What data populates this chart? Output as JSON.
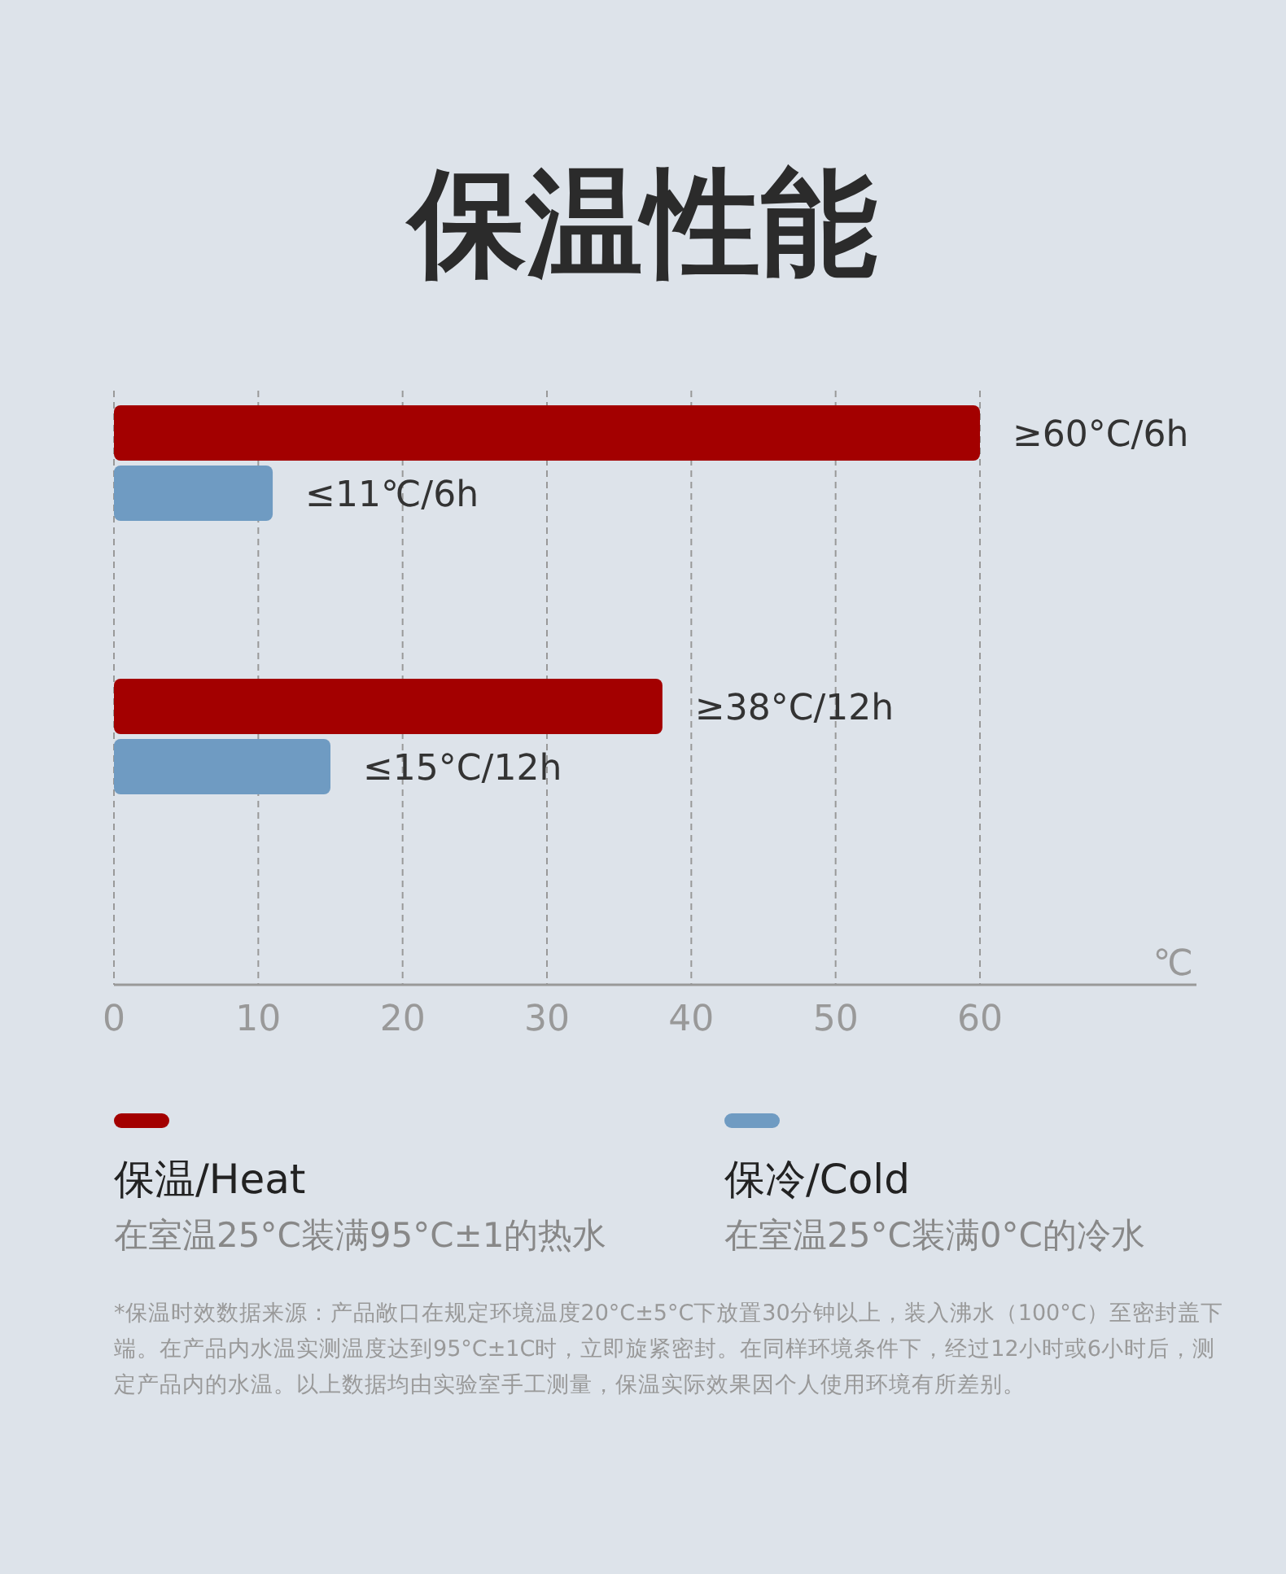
{
  "chart_data": {
    "type": "bar",
    "orientation": "horizontal",
    "title": "保温性能",
    "xlabel": "℃",
    "categories": [
      null,
      null
    ],
    "series": [
      {
        "name": "保温/Heat",
        "color": "#a30000",
        "values": [
          60,
          38
        ],
        "value_labels": [
          "≥60°C/6h",
          "≥38°C/12h"
        ]
      },
      {
        "name": "保冷/Cold",
        "color": "#6f9bc2",
        "values": [
          11,
          15
        ],
        "value_labels": [
          "≤11℃/6h",
          "≤15°C/12h"
        ]
      }
    ],
    "xlim": [
      0,
      75
    ],
    "xticks": [
      0,
      10,
      20,
      30,
      40,
      50,
      60
    ],
    "grid": "x",
    "legend": "bottom",
    "annotations": [
      "在室温25°C装满95°C±1的热水",
      "在室温25°C装满0°C的冷水",
      "*保温时效数据来源：产品敞口在规定环境温度20°C±5°C下放置30分钟以上，装入沸水（100°C）至密封盖下端。在产品内水温实测温度达到95°C±1C时，立即旋紧密封。在同样环境条件下，经过12小时或6小时后，测定产品内的水温。以上数据均由实验室手工测量，保温实际效果因个人使用环境有所差别。"
    ]
  }
}
